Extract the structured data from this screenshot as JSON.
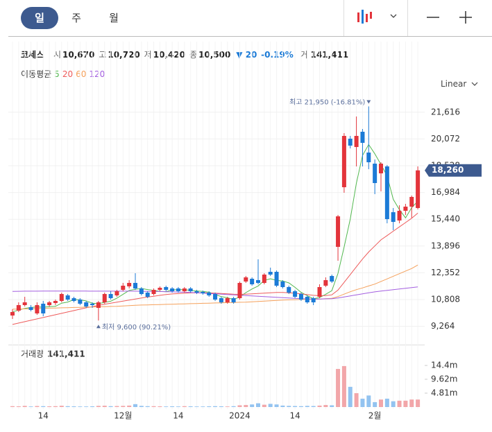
{
  "header": {
    "tabs": [
      "일",
      "주",
      "월"
    ],
    "name": "코세스",
    "quote": [
      {
        "label": "시",
        "value": "10,670"
      },
      {
        "label": "고",
        "value": "10,720"
      },
      {
        "label": "저",
        "value": "10,420"
      },
      {
        "label": "종",
        "value": "10,500"
      }
    ],
    "change": "▼ 20",
    "change_pct": "-0.19%",
    "volume_label": "거",
    "volume_value": "141,411",
    "scale_mode": "Linear"
  },
  "chart_data": {
    "type": "candlestick",
    "ma_title": "이동평균",
    "categories": [
      null,
      null,
      null,
      null,
      null,
      "14",
      null,
      null,
      null,
      null,
      null,
      null,
      null,
      null,
      null,
      null,
      null,
      null,
      "12월",
      null,
      null,
      null,
      null,
      null,
      null,
      null,
      null,
      "14",
      null,
      null,
      null,
      null,
      null,
      null,
      null,
      null,
      null,
      "2024",
      null,
      null,
      null,
      null,
      null,
      null,
      null,
      null,
      "14",
      null,
      null,
      null,
      null,
      null,
      null,
      null,
      null,
      null,
      null,
      null,
      null,
      "2월",
      null,
      null,
      null,
      null,
      null,
      null,
      null
    ],
    "open": [
      9888,
      10168,
      10488,
      10368,
      10008,
      10568,
      10488,
      10608,
      10728,
      11048,
      10888,
      10808,
      10648,
      10568,
      10328,
      10648,
      11128,
      11048,
      11368,
      11568,
      11768,
      11448,
      11208,
      11128,
      11368,
      11528,
      11448,
      11448,
      11288,
      11448,
      11288,
      11248,
      11208,
      11128,
      10888,
      10648,
      10888,
      10888,
      11848,
      12008,
      11928,
      11768,
      12408,
      12408,
      11848,
      11528,
      11288,
      11128,
      10968,
      10888,
      10968,
      11608,
      12168,
      13848,
      17288,
      20088,
      19608,
      20488,
      19288,
      18648,
      18088,
      18488,
      15848,
      15368,
      15928,
      16168,
      16088
    ],
    "high": [
      10248,
      10648,
      10968,
      10488,
      10648,
      10728,
      10728,
      10808,
      11208,
      11128,
      10968,
      10888,
      10728,
      10648,
      10728,
      11208,
      11288,
      11368,
      11768,
      11928,
      12328,
      11528,
      11288,
      11448,
      11568,
      11608,
      11528,
      11528,
      11528,
      11528,
      11368,
      11328,
      11288,
      11208,
      10968,
      10968,
      10968,
      11848,
      12168,
      12088,
      13128,
      12328,
      12648,
      12488,
      11928,
      11608,
      11368,
      11208,
      11048,
      10968,
      11688,
      12088,
      12248,
      15688,
      20408,
      20248,
      21368,
      20648,
      21950,
      18888,
      18728,
      18568,
      16088,
      16248,
      16328,
      16808,
      18488
    ],
    "low": [
      9688,
      10088,
      10408,
      10128,
      9928,
      9848,
      10408,
      10488,
      10648,
      10728,
      10648,
      10488,
      10328,
      10328,
      9600,
      10568,
      10808,
      10968,
      11288,
      11448,
      11368,
      11048,
      10888,
      11048,
      11288,
      11288,
      11208,
      11208,
      11208,
      11208,
      11128,
      11088,
      10968,
      10728,
      10568,
      10568,
      10568,
      10808,
      11768,
      11608,
      11688,
      11688,
      12168,
      11528,
      11448,
      11128,
      10888,
      10728,
      10568,
      10488,
      10888,
      11528,
      11768,
      13048,
      16968,
      19528,
      18488,
      18488,
      18328,
      16888,
      17048,
      15208,
      14808,
      15208,
      15688,
      15528,
      16008
    ],
    "close": [
      10088,
      10488,
      10648,
      10208,
      10488,
      10008,
      10648,
      10728,
      11128,
      10808,
      10728,
      10568,
      10408,
      10488,
      10648,
      11128,
      10888,
      11288,
      11608,
      11768,
      11448,
      11128,
      10968,
      11368,
      11488,
      11368,
      11288,
      11288,
      11448,
      11288,
      11208,
      11168,
      11048,
      10808,
      10648,
      10888,
      10648,
      11768,
      12088,
      11688,
      11768,
      12248,
      12248,
      11608,
      11528,
      11208,
      10968,
      10808,
      10648,
      10648,
      11528,
      11928,
      11848,
      15608,
      20248,
      19688,
      20248,
      19848,
      18728,
      17528,
      18648,
      15448,
      15288,
      15928,
      16168,
      16728,
      18260
    ],
    "close_label": "18,260",
    "up_color": "#e3343b",
    "down_color": "#1b7ad6",
    "moving_averages": [
      {
        "name": "5",
        "color": "#52b84f",
        "values": [
          10100,
          10200,
          10300,
          10350,
          10384,
          10368,
          10400,
          10416,
          10600,
          10664,
          10808,
          10792,
          10728,
          10600,
          10568,
          10648,
          10712,
          10888,
          11112,
          11336,
          11400,
          11448,
          11384,
          11336,
          11280,
          11264,
          11368,
          11376,
          11376,
          11336,
          11304,
          11280,
          11232,
          11104,
          10976,
          10912,
          10808,
          10960,
          11208,
          11416,
          11592,
          11912,
          12008,
          11912,
          11880,
          11768,
          11512,
          11224,
          11032,
          10856,
          10920,
          11112,
          11320,
          12312,
          13840,
          15464,
          17528,
          19128,
          19752,
          19216,
          18600,
          17936,
          16592,
          16000,
          15520,
          16112,
          16480
        ]
      },
      {
        "name": "20",
        "color": "#ee5a5a",
        "values": [
          9370,
          9450,
          9530,
          9610,
          9690,
          9770,
          9850,
          9930,
          10010,
          10090,
          10170,
          10250,
          10330,
          10400,
          10470,
          10540,
          10600,
          10660,
          10720,
          10780,
          10840,
          10900,
          10950,
          11000,
          11050,
          11100,
          11130,
          11150,
          11170,
          11190,
          11200,
          11200,
          11190,
          11180,
          11160,
          11140,
          11120,
          11110,
          11120,
          11140,
          11160,
          11180,
          11200,
          11220,
          11220,
          11200,
          11170,
          11130,
          11090,
          11050,
          11030,
          11040,
          11080,
          11350,
          11800,
          12250,
          12700,
          13150,
          13550,
          13900,
          14250,
          14500,
          14750,
          15000,
          15250,
          15500,
          15800
        ]
      },
      {
        "name": "60",
        "color": "#f5a05a",
        "values": [
          10250,
          10260,
          10270,
          10280,
          10290,
          10300,
          10310,
          10320,
          10330,
          10340,
          10350,
          10360,
          10370,
          10380,
          10390,
          10400,
          10410,
          10420,
          10440,
          10460,
          10480,
          10490,
          10500,
          10510,
          10520,
          10530,
          10540,
          10550,
          10560,
          10570,
          10580,
          10590,
          10600,
          10610,
          10620,
          10630,
          10640,
          10650,
          10660,
          10680,
          10700,
          10720,
          10740,
          10760,
          10780,
          10790,
          10800,
          10810,
          10820,
          10830,
          10840,
          10860,
          10880,
          10980,
          11120,
          11260,
          11380,
          11480,
          11590,
          11700,
          11850,
          12000,
          12150,
          12300,
          12450,
          12600,
          12800
        ]
      },
      {
        "name": "120",
        "color": "#a35ee0",
        "values": [
          11280,
          11285,
          11290,
          11290,
          11290,
          11295,
          11300,
          11300,
          11300,
          11300,
          11300,
          11300,
          11295,
          11290,
          11290,
          11290,
          11290,
          11290,
          11290,
          11290,
          11290,
          11285,
          11280,
          11275,
          11270,
          11260,
          11250,
          11240,
          11230,
          11220,
          11200,
          11180,
          11160,
          11140,
          11120,
          11100,
          11080,
          11060,
          11040,
          11020,
          11000,
          10980,
          10960,
          10940,
          10920,
          10900,
          10880,
          10860,
          10850,
          10840,
          10840,
          10850,
          10860,
          10900,
          10960,
          11020,
          11080,
          11140,
          11200,
          11250,
          11300,
          11340,
          11380,
          11420,
          11460,
          11500,
          11540
        ]
      }
    ],
    "ylim": [
      8488,
      22488
    ],
    "yticks": [
      {
        "value": 9264,
        "label": "9,264"
      },
      {
        "value": 10808,
        "label": "10,808"
      },
      {
        "value": 12352,
        "label": "12,352"
      },
      {
        "value": 13896,
        "label": "13,896"
      },
      {
        "value": 15440,
        "label": "15,440"
      },
      {
        "value": 16984,
        "label": "16,984"
      },
      {
        "value": 18528,
        "label": "18,528"
      },
      {
        "value": 20072,
        "label": "20,072"
      },
      {
        "value": 21616,
        "label": "21,616"
      }
    ],
    "grid": true,
    "high_annotation": "최고 21,950 (-16.81%)",
    "low_annotation": "최저 9,600 (90.21%)",
    "volume_title": "거래량",
    "volume_last": "141,411",
    "volume": [
      300000,
      250000,
      400000,
      200000,
      350000,
      300000,
      250000,
      300000,
      450000,
      300000,
      250000,
      200000,
      200000,
      250000,
      400000,
      450000,
      300000,
      350000,
      400000,
      500000,
      1000000,
      400000,
      300000,
      300000,
      250000,
      200000,
      250000,
      200000,
      300000,
      250000,
      200000,
      200000,
      250000,
      300000,
      250000,
      200000,
      300000,
      600000,
      700000,
      900000,
      1300000,
      800000,
      1100000,
      900000,
      500000,
      400000,
      350000,
      300000,
      400000,
      350000,
      500000,
      700000,
      600000,
      13200000,
      14200000,
      7000000,
      4800000,
      2900000,
      4000000,
      1700000,
      2600000,
      2900000,
      2000000,
      2200000,
      2200000,
      2600000,
      2600000
    ],
    "volume_up_color": "#f2a6a9",
    "volume_down_color": "#93c3f0",
    "vlim": [
      0,
      19700000
    ],
    "vticks": [
      {
        "value": 4810000,
        "label": "4.81m"
      },
      {
        "value": 9620000,
        "label": "9.62m"
      },
      {
        "value": 14400000,
        "label": "14.4m"
      }
    ]
  }
}
